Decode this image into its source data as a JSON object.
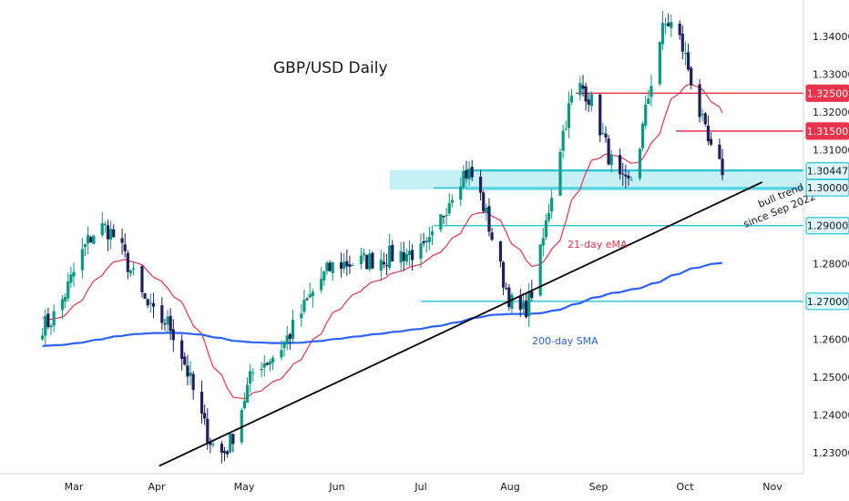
{
  "chart_data": {
    "type": "candlestick",
    "title": "GBP/USD Daily",
    "x_labels": [
      "Mar",
      "Apr",
      "May",
      "Jun",
      "Jul",
      "Aug",
      "Sep",
      "Oct",
      "Nov"
    ],
    "y_ticks": [
      "1.34000",
      "1.33000",
      "1.32000",
      "1.31000",
      "1.28000",
      "1.26000",
      "1.25000",
      "1.24000",
      "1.23000"
    ],
    "ylim": [
      1.2265,
      1.345
    ],
    "price_tags": [
      {
        "label": "1.32500",
        "value": 1.325,
        "color": "#e8334b",
        "kind": "resistance"
      },
      {
        "label": "1.31500",
        "value": 1.315,
        "color": "#e8334b",
        "kind": "resistance"
      },
      {
        "label": "1.30447",
        "value": 1.30447,
        "color": "#26c6da",
        "kind": "current"
      },
      {
        "label": "1.30000",
        "value": 1.3,
        "color": "#26c6da",
        "kind": "support"
      },
      {
        "label": "1.29000",
        "value": 1.29,
        "color": "#26c6da",
        "kind": "support"
      },
      {
        "label": "1.27000",
        "value": 1.27,
        "color": "#26c6da",
        "kind": "support"
      }
    ],
    "annotations": {
      "ema": "21-day eMA",
      "sma": "200-day SMA",
      "trend_line1": "bull trend",
      "trend_line2": "since Sep 2022"
    },
    "colors": {
      "up": "#089981",
      "down": "#1f1e5e",
      "ema": "#e8334b",
      "sma": "#2962ff",
      "level": "#26c6da",
      "zone": "#b2ebf2",
      "trend": "#000000"
    },
    "dates": [
      "2024-02-19",
      "2024-03-11",
      "2024-04-01",
      "2024-04-22",
      "2024-05-06",
      "2024-06-03",
      "2024-07-01",
      "2024-07-17",
      "2024-08-05",
      "2024-08-26",
      "2024-09-11",
      "2024-09-26",
      "2024-10-15"
    ],
    "anchors": [
      1.2637,
      1.2895,
      1.265,
      1.23,
      1.254,
      1.28,
      1.283,
      1.304,
      1.267,
      1.3265,
      1.3005,
      1.3435,
      1.305
    ],
    "ema_start": 1.266,
    "sma_start": 1.2582,
    "trend_line": [
      [
        "2024-03-31",
        1.2265
      ],
      [
        "2024-10-29",
        1.3015
      ]
    ]
  }
}
